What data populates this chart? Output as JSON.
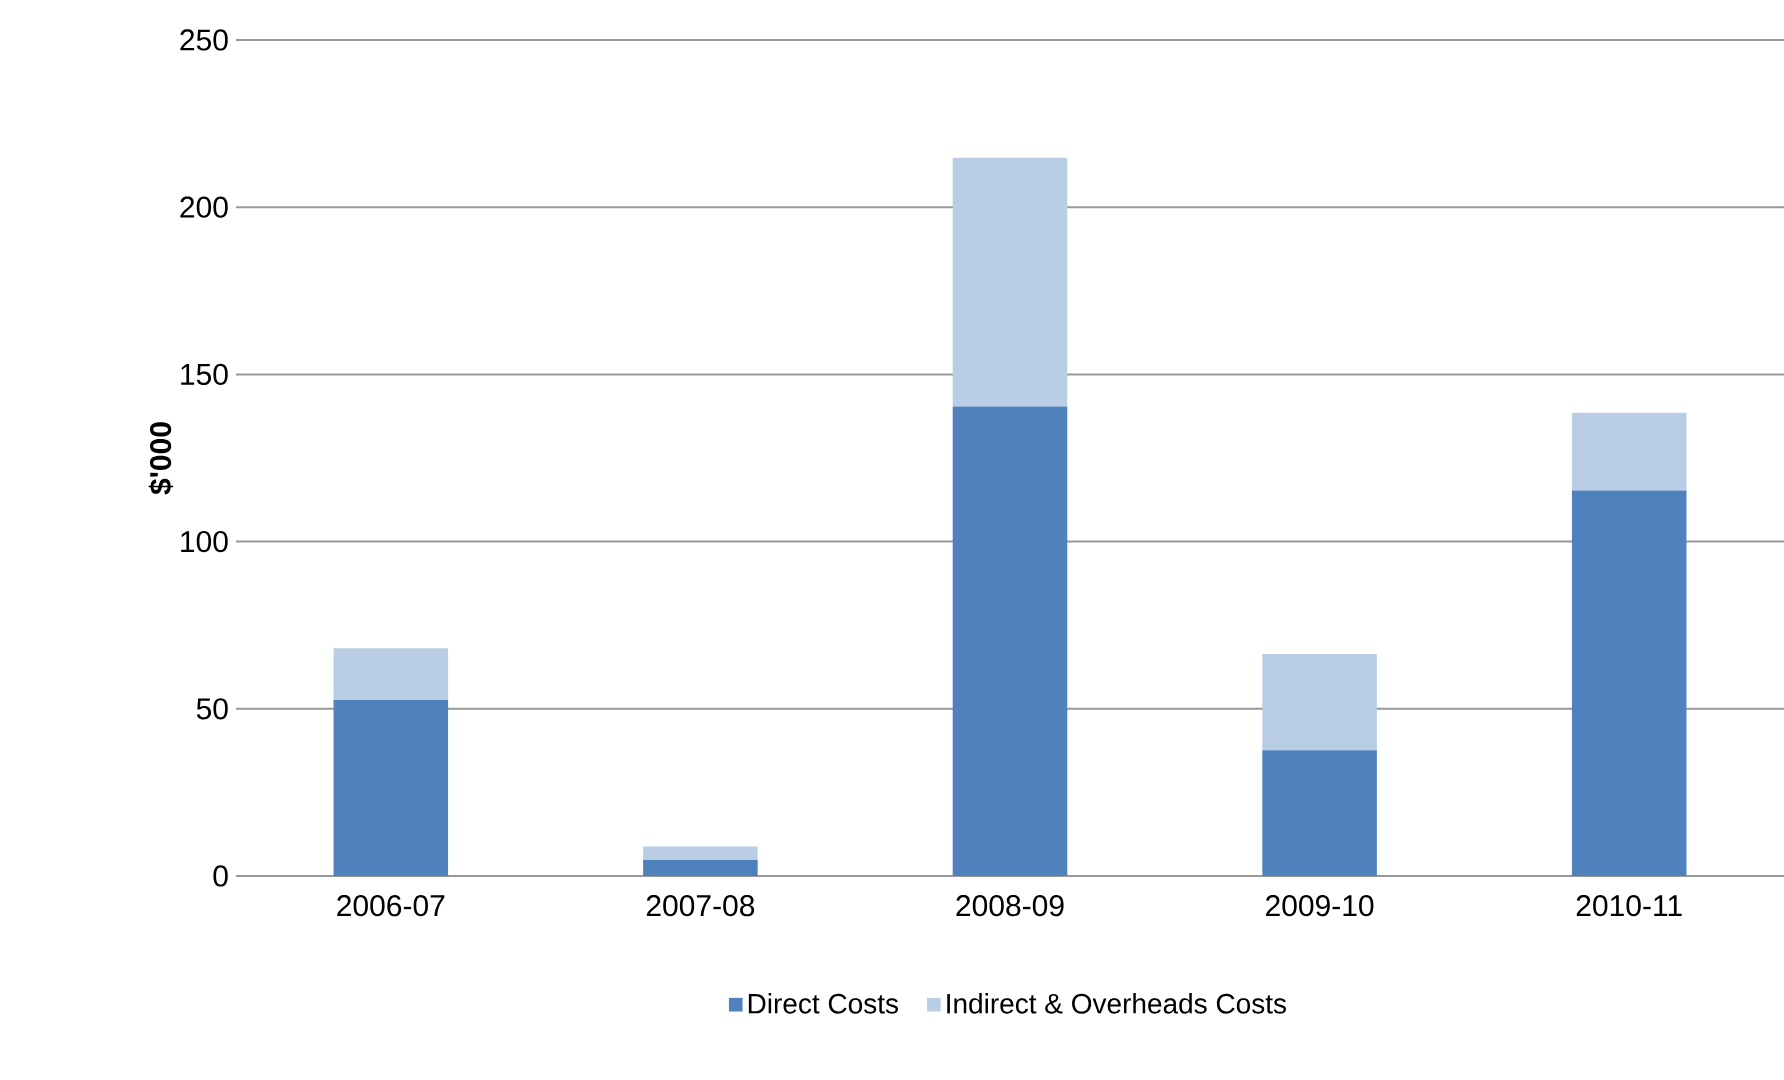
{
  "chart_data": {
    "type": "bar",
    "stacked": true,
    "ylabel": "$'000",
    "categories": [
      "2006-07",
      "2007-08",
      "2008-09",
      "2009-10",
      "2010-11"
    ],
    "series": [
      {
        "name": "Direct Costs",
        "color": "#4f81bd",
        "values": [
          52.6,
          4.8,
          140.4,
          37.6,
          115.3
        ]
      },
      {
        "name": "Indirect & Overheads Costs",
        "color": "#b9cde5",
        "values": [
          15.5,
          4.0,
          74.4,
          28.8,
          23.2
        ]
      }
    ],
    "ylim": [
      0,
      250
    ],
    "yticks": [
      0,
      50,
      100,
      150,
      200,
      250
    ],
    "grid": "y",
    "legend": "bottom"
  }
}
